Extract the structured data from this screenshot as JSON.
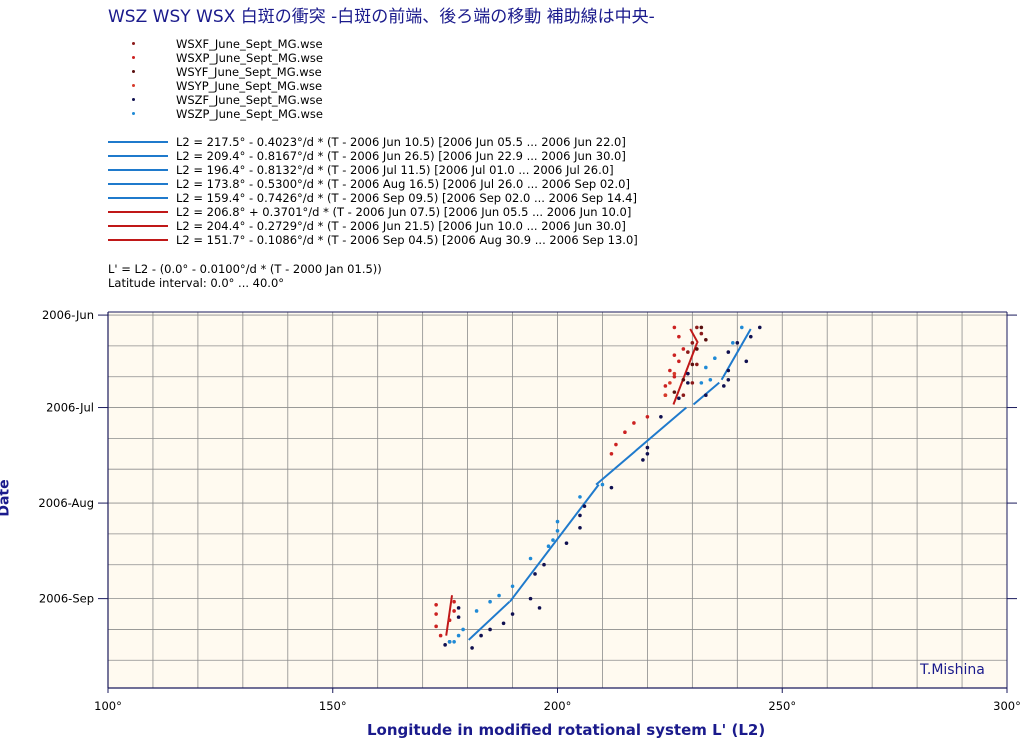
{
  "title": "WSZ  WSY  WSX  白斑の衝突  -白斑の前端、後ろ端の移動  補助線は中央-",
  "legend_points": [
    {
      "label": "WSXF_June_Sept_MG.wse",
      "color": "#8b1a1a"
    },
    {
      "label": "WSXP_June_Sept_MG.wse",
      "color": "#cc2222"
    },
    {
      "label": "WSYF_June_Sept_MG.wse",
      "color": "#5a0f0f"
    },
    {
      "label": "WSYP_June_Sept_MG.wse",
      "color": "#d63a2a"
    },
    {
      "label": "WSZF_June_Sept_MG.wse",
      "color": "#101050"
    },
    {
      "label": "WSZP_June_Sept_MG.wse",
      "color": "#1f8ad6"
    }
  ],
  "legend_lines": [
    {
      "label": "L2 = 217.5° - 0.4023°/d * (T - 2006 Jun 10.5) [2006 Jun 05.5 ... 2006 Jun 22.0]",
      "color": "#1f7acc"
    },
    {
      "label": "L2 = 209.4° - 0.8167°/d * (T - 2006 Jun 26.5) [2006 Jun 22.9 ... 2006 Jun 30.0]",
      "color": "#1f7acc"
    },
    {
      "label": "L2 = 196.4° - 0.8132°/d * (T - 2006 Jul 11.5) [2006 Jul 01.0 ... 2006 Jul 26.0]",
      "color": "#1f7acc"
    },
    {
      "label": "L2 = 173.8° - 0.5300°/d * (T - 2006 Aug 16.5) [2006 Jul 26.0 ... 2006 Sep 02.0]",
      "color": "#1f7acc"
    },
    {
      "label": "L2 = 159.4° - 0.7426°/d * (T - 2006 Sep 09.5) [2006 Sep 02.0 ... 2006 Sep 14.4]",
      "color": "#1f7acc"
    },
    {
      "label": "L2 = 206.8° + 0.3701°/d * (T - 2006 Jun 07.5) [2006 Jun 05.5 ... 2006 Jun 10.0]",
      "color": "#c01818"
    },
    {
      "label": "L2 = 204.4° - 0.2729°/d * (T - 2006 Jun 21.5) [2006 Jun 10.0 ... 2006 Jun 30.0]",
      "color": "#c01818"
    },
    {
      "label": "L2 = 151.7° - 0.1086°/d * (T - 2006 Sep 04.5) [2006 Aug 30.9 ... 2006 Sep 13.0]",
      "color": "#c01818"
    }
  ],
  "notes": [
    "L' = L2 - (0.0° - 0.0100°/d * (T - 2000 Jan 01.5))",
    "Latitude interval: 0.0° ... 40.0°"
  ],
  "credit": "T.Mishina",
  "chart_data": {
    "type": "scatter",
    "xlabel": "Longitude in modified rotational system L' (L2)",
    "ylabel": "Date",
    "xlim": [
      100,
      300
    ],
    "ylim": [
      "2006-05-31",
      "2006-09-30"
    ],
    "x_ticks": [
      "100°",
      "150°",
      "200°",
      "250°",
      "300°"
    ],
    "y_ticks": [
      "2006-Jun",
      "2006-Jul",
      "2006-Aug",
      "2006-Sep"
    ],
    "background": "#fffaf0",
    "grid": true,
    "series": [
      {
        "name": "WSXF_June_Sept_MG.wse",
        "color": "#8b1a1a",
        "points": [
          [
            231,
            "2006-06-05"
          ],
          [
            232,
            "2006-06-07"
          ],
          [
            230,
            "2006-06-10"
          ],
          [
            229,
            "2006-06-13"
          ],
          [
            231,
            "2006-06-17"
          ],
          [
            229,
            "2006-06-20"
          ],
          [
            230,
            "2006-06-23"
          ],
          [
            228,
            "2006-06-27"
          ]
        ]
      },
      {
        "name": "WSXP_June_Sept_MG.wse",
        "color": "#cc2222",
        "points": [
          [
            226,
            "2006-06-05"
          ],
          [
            227,
            "2006-06-08"
          ],
          [
            228,
            "2006-06-12"
          ],
          [
            226,
            "2006-06-14"
          ],
          [
            227,
            "2006-06-16"
          ],
          [
            225,
            "2006-06-19"
          ],
          [
            226,
            "2006-06-21"
          ],
          [
            224,
            "2006-06-24"
          ],
          [
            224,
            "2006-06-27"
          ],
          [
            220,
            "2006-07-04"
          ],
          [
            217,
            "2006-07-06"
          ],
          [
            215,
            "2006-07-09"
          ],
          [
            213,
            "2006-07-13"
          ],
          [
            212,
            "2006-07-16"
          ],
          [
            173,
            "2006-09-03"
          ],
          [
            173,
            "2006-09-06"
          ],
          [
            173,
            "2006-09-10"
          ],
          [
            174,
            "2006-09-13"
          ],
          [
            177,
            "2006-09-02"
          ],
          [
            177,
            "2006-09-05"
          ],
          [
            176,
            "2006-09-08"
          ]
        ]
      },
      {
        "name": "WSYF_June_Sept_MG.wse",
        "color": "#5a0f0f",
        "points": [
          [
            232,
            "2006-06-05"
          ],
          [
            233,
            "2006-06-09"
          ],
          [
            231,
            "2006-06-12"
          ],
          [
            230,
            "2006-06-17"
          ],
          [
            228,
            "2006-06-22"
          ],
          [
            226,
            "2006-06-26"
          ]
        ]
      },
      {
        "name": "WSYP_June_Sept_MG.wse",
        "color": "#d63a2a",
        "points": [
          [
            226,
            "2006-06-20"
          ],
          [
            225,
            "2006-06-23"
          ],
          [
            224,
            "2006-06-27"
          ]
        ]
      },
      {
        "name": "WSZF_June_Sept_MG.wse",
        "color": "#101050",
        "points": [
          [
            245,
            "2006-06-05"
          ],
          [
            243,
            "2006-06-08"
          ],
          [
            240,
            "2006-06-10"
          ],
          [
            238,
            "2006-06-13"
          ],
          [
            242,
            "2006-06-16"
          ],
          [
            238,
            "2006-06-19"
          ],
          [
            238,
            "2006-06-22"
          ],
          [
            237,
            "2006-06-24"
          ],
          [
            233,
            "2006-06-27"
          ],
          [
            229,
            "2006-06-20"
          ],
          [
            229,
            "2006-06-23"
          ],
          [
            227,
            "2006-06-28"
          ],
          [
            223,
            "2006-07-04"
          ],
          [
            220,
            "2006-07-14"
          ],
          [
            220,
            "2006-07-16"
          ],
          [
            219,
            "2006-07-18"
          ],
          [
            212,
            "2006-07-27"
          ],
          [
            206,
            "2006-08-02"
          ],
          [
            205,
            "2006-08-05"
          ],
          [
            205,
            "2006-08-09"
          ],
          [
            202,
            "2006-08-14"
          ],
          [
            197,
            "2006-08-21"
          ],
          [
            195,
            "2006-08-24"
          ],
          [
            194,
            "2006-09-01"
          ],
          [
            196,
            "2006-09-04"
          ],
          [
            190,
            "2006-09-06"
          ],
          [
            188,
            "2006-09-09"
          ],
          [
            185,
            "2006-09-11"
          ],
          [
            183,
            "2006-09-13"
          ],
          [
            178,
            "2006-09-04"
          ],
          [
            178,
            "2006-09-07"
          ],
          [
            176,
            "2006-09-15"
          ],
          [
            175,
            "2006-09-16"
          ],
          [
            181,
            "2006-09-17"
          ]
        ]
      },
      {
        "name": "WSZP_June_Sept_MG.wse",
        "color": "#1f8ad6",
        "points": [
          [
            241,
            "2006-06-05"
          ],
          [
            239,
            "2006-06-10"
          ],
          [
            235,
            "2006-06-15"
          ],
          [
            233,
            "2006-06-18"
          ],
          [
            234,
            "2006-06-22"
          ],
          [
            232,
            "2006-06-23"
          ],
          [
            210,
            "2006-07-26"
          ],
          [
            205,
            "2006-07-30"
          ],
          [
            200,
            "2006-08-07"
          ],
          [
            200,
            "2006-08-10"
          ],
          [
            199,
            "2006-08-13"
          ],
          [
            198,
            "2006-08-15"
          ],
          [
            194,
            "2006-08-19"
          ],
          [
            190,
            "2006-08-28"
          ],
          [
            187,
            "2006-08-31"
          ],
          [
            185,
            "2006-09-02"
          ],
          [
            182,
            "2006-09-05"
          ],
          [
            179,
            "2006-09-11"
          ],
          [
            178,
            "2006-09-13"
          ],
          [
            177,
            "2006-09-15"
          ],
          [
            176,
            "2006-09-15"
          ]
        ]
      }
    ],
    "fit_lines": [
      {
        "color": "#1f7acc",
        "l2_at_ref": 217.5,
        "rate": -0.4023,
        "ref": "2006-06-10.5",
        "from": "2006-06-05.5",
        "to": "2006-06-22.0"
      },
      {
        "color": "#1f7acc",
        "l2_at_ref": 209.4,
        "rate": -0.8167,
        "ref": "2006-06-26.5",
        "from": "2006-06-22.9",
        "to": "2006-06-30.0"
      },
      {
        "color": "#1f7acc",
        "l2_at_ref": 196.4,
        "rate": -0.8132,
        "ref": "2006-07-11.5",
        "from": "2006-07-01.0",
        "to": "2006-07-26.0"
      },
      {
        "color": "#1f7acc",
        "l2_at_ref": 173.8,
        "rate": -0.53,
        "ref": "2006-08-16.5",
        "from": "2006-07-26.0",
        "to": "2006-09-02.0"
      },
      {
        "color": "#1f7acc",
        "l2_at_ref": 159.4,
        "rate": -0.7426,
        "ref": "2006-09-09.5",
        "from": "2006-09-02.0",
        "to": "2006-09-14.4"
      },
      {
        "color": "#c01818",
        "l2_at_ref": 206.8,
        "rate": 0.3701,
        "ref": "2006-06-07.5",
        "from": "2006-06-05.5",
        "to": "2006-06-10.0"
      },
      {
        "color": "#c01818",
        "l2_at_ref": 204.4,
        "rate": -0.2729,
        "ref": "2006-06-21.5",
        "from": "2006-06-10.0",
        "to": "2006-06-30.0"
      },
      {
        "color": "#c01818",
        "l2_at_ref": 151.7,
        "rate": -0.1086,
        "ref": "2006-09-04.5",
        "from": "2006-08-30.9",
        "to": "2006-09-13.0"
      }
    ],
    "l_prime_rate": 0.01,
    "l_prime_epoch": "2000-01-01.5"
  }
}
